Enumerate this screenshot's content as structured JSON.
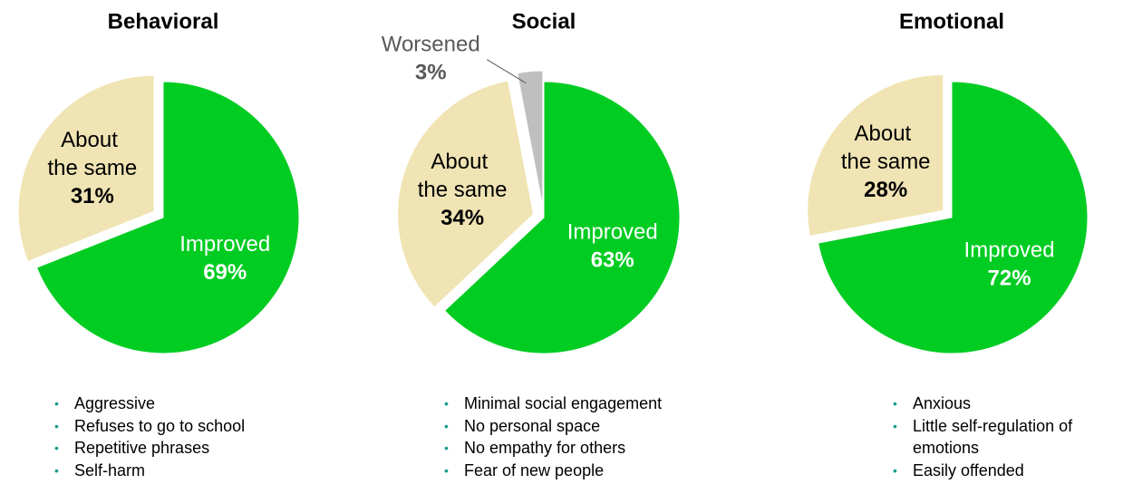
{
  "chart_data": [
    {
      "type": "pie",
      "title": "Behavioral",
      "categories": [
        "Improved",
        "About the same"
      ],
      "values": [
        69,
        31
      ],
      "value_labels": [
        "69%",
        "31%"
      ],
      "colors": [
        "#00cc22",
        "#f0e4b4"
      ],
      "notes": [
        "Aggressive",
        "Refuses to go to school",
        "Repetitive phrases",
        "Self-harm"
      ]
    },
    {
      "type": "pie",
      "title": "Social",
      "categories": [
        "Improved",
        "About the same",
        "Worsened"
      ],
      "values": [
        63,
        34,
        3
      ],
      "value_labels": [
        "63%",
        "34%",
        "3%"
      ],
      "colors": [
        "#00cc22",
        "#f0e4b4",
        "#bfbfbf"
      ],
      "notes": [
        "Minimal social engagement",
        "No personal space",
        "No empathy for others",
        "Fear of new people"
      ]
    },
    {
      "type": "pie",
      "title": "Emotional",
      "categories": [
        "Improved",
        "About the same"
      ],
      "values": [
        72,
        28
      ],
      "value_labels": [
        "72%",
        "28%"
      ],
      "colors": [
        "#00cc22",
        "#f0e4b4"
      ],
      "notes": [
        "Anxious",
        "Little self-regulation of emotions",
        "Easily offended"
      ]
    }
  ]
}
